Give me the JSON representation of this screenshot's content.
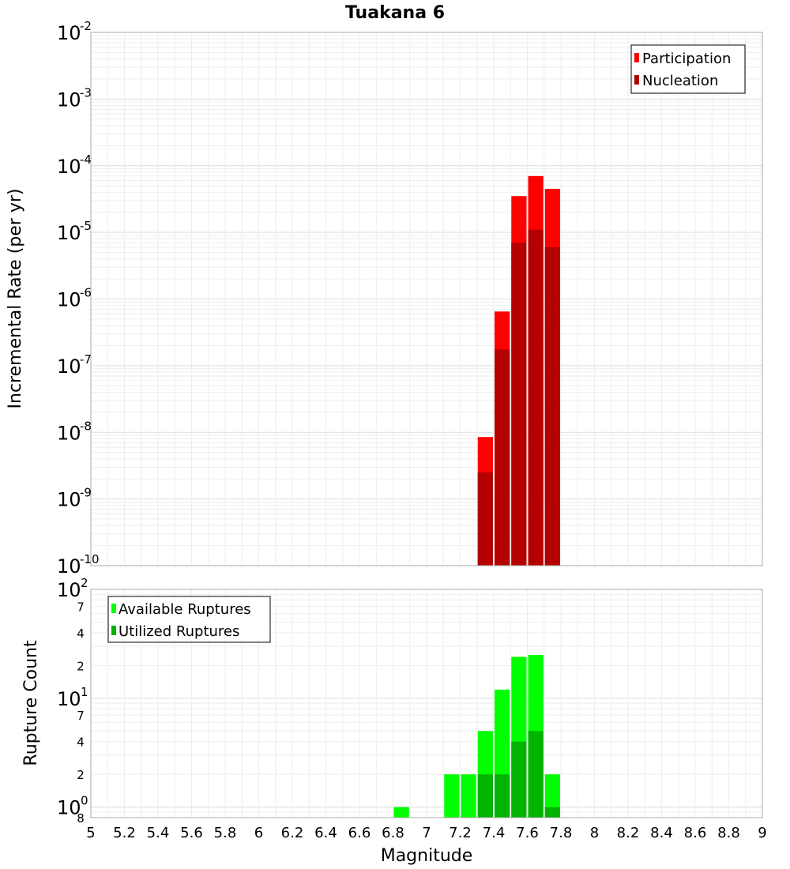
{
  "chart_data": [
    {
      "type": "bar",
      "title": "Tuakana 6",
      "xlabel": "Magnitude",
      "ylabel": "Incremental Rate (per yr)",
      "yscale": "log",
      "ylim_exp": [
        -10,
        -2
      ],
      "xlim": [
        5,
        9
      ],
      "legend_position": "top-right",
      "y_decades": [
        {
          "base": "10",
          "exp": "-2"
        },
        {
          "base": "10",
          "exp": "-3"
        },
        {
          "base": "10",
          "exp": "-4"
        },
        {
          "base": "10",
          "exp": "-5"
        },
        {
          "base": "10",
          "exp": "-6"
        },
        {
          "base": "10",
          "exp": "-7"
        },
        {
          "base": "10",
          "exp": "-8"
        },
        {
          "base": "10",
          "exp": "-9"
        },
        {
          "base": "10",
          "exp": "-10"
        }
      ],
      "series": [
        {
          "name": "Participation",
          "color": "#ff0000",
          "x": [
            7.35,
            7.45,
            7.55,
            7.65,
            7.75
          ],
          "values": [
            8.5e-09,
            6.5e-07,
            3.5e-05,
            7e-05,
            4.5e-05
          ]
        },
        {
          "name": "Nucleation",
          "color": "#b40000",
          "x": [
            7.35,
            7.45,
            7.55,
            7.65,
            7.75
          ],
          "values": [
            2.5e-09,
            1.75e-07,
            7e-06,
            1.1e-05,
            6e-06
          ]
        }
      ]
    },
    {
      "type": "bar",
      "xlabel": "Magnitude",
      "ylabel": "Rupture Count",
      "yscale": "log",
      "ylim": [
        0.8,
        100
      ],
      "xlim": [
        5,
        9
      ],
      "legend_position": "top-left",
      "y_decades": [
        {
          "base": "10",
          "exp": "2"
        },
        {
          "base": "10",
          "exp": "1"
        },
        {
          "base": "10",
          "exp": "0"
        }
      ],
      "y_minor_labels": [
        "7",
        "4",
        "2",
        "7",
        "4",
        "2",
        "8"
      ],
      "series": [
        {
          "name": "Available Ruptures",
          "color": "#00ff00",
          "x": [
            6.85,
            7.15,
            7.25,
            7.35,
            7.45,
            7.55,
            7.65,
            7.75
          ],
          "values": [
            1,
            2,
            2,
            5,
            12,
            24,
            25,
            2
          ]
        },
        {
          "name": "Utilized Ruptures",
          "color": "#00b400",
          "x": [
            7.35,
            7.45,
            7.55,
            7.65,
            7.75
          ],
          "values": [
            2,
            2,
            4,
            5,
            1
          ]
        }
      ]
    }
  ],
  "x_ticks": [
    "5",
    "5.2",
    "5.4",
    "5.6",
    "5.8",
    "6",
    "6.2",
    "6.4",
    "6.6",
    "6.8",
    "7",
    "7.2",
    "7.4",
    "7.6",
    "7.8",
    "8",
    "8.2",
    "8.4",
    "8.6",
    "8.8",
    "9"
  ]
}
